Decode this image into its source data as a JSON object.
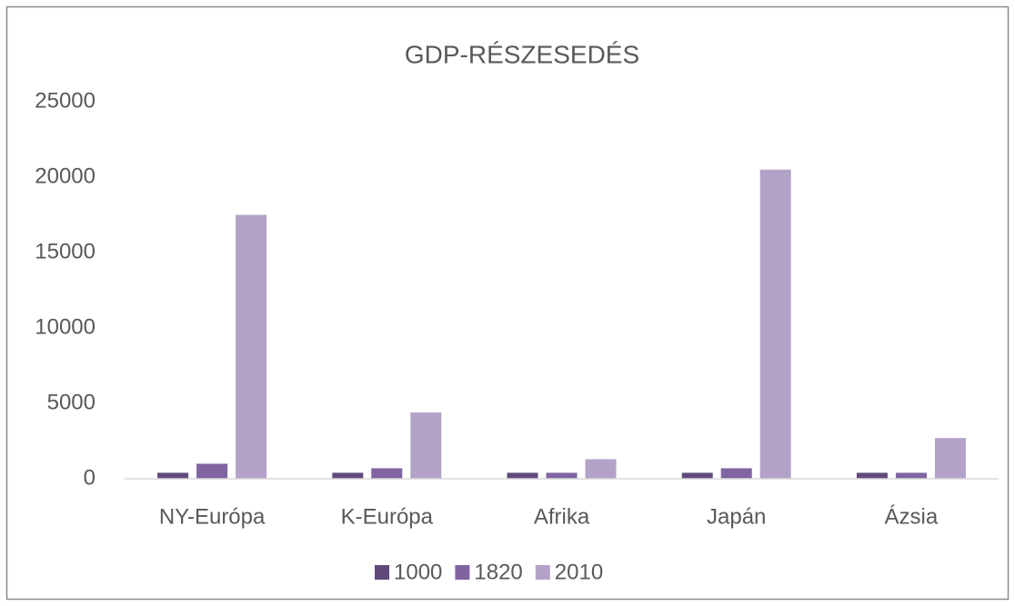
{
  "chart_data": {
    "type": "bar",
    "title": "GDP-RÉSZESEDÉS",
    "categories": [
      "NY-Európa",
      "K-Európa",
      "Afrika",
      "Japán",
      "Ázsia"
    ],
    "series": [
      {
        "name": "1000",
        "color": "#604a7b",
        "values": [
          400,
          400,
          400,
          400,
          400
        ]
      },
      {
        "name": "1820",
        "color": "#8064a2",
        "values": [
          1000,
          700,
          400,
          700,
          400
        ]
      },
      {
        "name": "2010",
        "color": "#b3a2c7",
        "values": [
          17500,
          4400,
          1300,
          20500,
          2700
        ]
      }
    ],
    "ylim": [
      0,
      25000
    ],
    "yticks": [
      0,
      5000,
      10000,
      15000,
      20000,
      25000
    ],
    "grid": false,
    "legend": "bottom"
  }
}
